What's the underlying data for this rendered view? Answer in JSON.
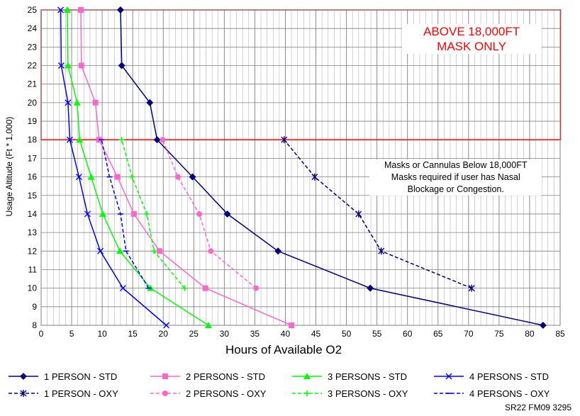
{
  "chart_data": {
    "type": "line",
    "xlabel": "Hours of Available O2",
    "ylabel": "Usage Altitude (Ft * 1,000)",
    "xlim": [
      0,
      85
    ],
    "ylim": [
      8,
      25
    ],
    "xticks": [
      0,
      5,
      10,
      15,
      20,
      25,
      30,
      35,
      40,
      45,
      50,
      55,
      60,
      65,
      70,
      75,
      80,
      85
    ],
    "yticks": [
      8,
      9,
      10,
      11,
      12,
      13,
      14,
      15,
      16,
      17,
      18,
      19,
      20,
      21,
      22,
      23,
      24,
      25
    ],
    "grid": true,
    "legend_position": "bottom",
    "warning_threshold": 18,
    "annotations": {
      "above": "ABOVE 18,000FT\nMASK ONLY",
      "below": "Masks or Cannulas Below 18,000FT\nMasks required if user has Nasal\nBlockage or Congestion."
    },
    "series": [
      {
        "name": "1 PERSON - STD",
        "color": "#000080",
        "dash": "solid",
        "marker": "diamond",
        "points": [
          [
            82.2,
            8
          ],
          [
            53.9,
            10
          ],
          [
            38.8,
            12
          ],
          [
            30.5,
            14
          ],
          [
            24.8,
            16
          ],
          [
            19.0,
            18
          ],
          [
            17.8,
            20
          ],
          [
            13.2,
            22
          ],
          [
            13.0,
            25
          ]
        ]
      },
      {
        "name": "2 PERSONS - STD",
        "color": "#ff66cc",
        "dash": "solid",
        "marker": "square",
        "points": [
          [
            41.0,
            8
          ],
          [
            26.9,
            10
          ],
          [
            19.4,
            12
          ],
          [
            15.2,
            14
          ],
          [
            12.5,
            16
          ],
          [
            9.5,
            18
          ],
          [
            8.9,
            20
          ],
          [
            6.6,
            22
          ],
          [
            6.5,
            25
          ]
        ]
      },
      {
        "name": "3 PERSONS - STD",
        "color": "#00ff00",
        "dash": "solid",
        "marker": "triangle",
        "points": [
          [
            27.4,
            8
          ],
          [
            17.9,
            10
          ],
          [
            12.9,
            12
          ],
          [
            10.1,
            14
          ],
          [
            8.2,
            16
          ],
          [
            6.3,
            18
          ],
          [
            5.9,
            20
          ],
          [
            4.4,
            22
          ],
          [
            4.3,
            25
          ]
        ]
      },
      {
        "name": "4 PERSONS - STD",
        "color": "#0000ff",
        "dash": "solid",
        "marker": "x",
        "points": [
          [
            20.5,
            8
          ],
          [
            13.4,
            10
          ],
          [
            9.7,
            12
          ],
          [
            7.6,
            14
          ],
          [
            6.2,
            16
          ],
          [
            4.7,
            18
          ],
          [
            4.4,
            20
          ],
          [
            3.3,
            22
          ],
          [
            3.2,
            25
          ]
        ]
      },
      {
        "name": "1 PERSON - OXY",
        "color": "#000080",
        "dash": "dashed",
        "marker": "star",
        "points": [
          [
            70.5,
            10
          ],
          [
            55.7,
            12
          ],
          [
            52.0,
            14
          ],
          [
            44.8,
            16
          ],
          [
            39.8,
            18
          ]
        ]
      },
      {
        "name": "2 PERSONS - OXY",
        "color": "#ff66cc",
        "dash": "dashed",
        "marker": "circle",
        "points": [
          [
            35.2,
            10
          ],
          [
            27.8,
            12
          ],
          [
            25.9,
            14
          ],
          [
            22.4,
            16
          ],
          [
            19.9,
            18
          ]
        ]
      },
      {
        "name": "3 PERSONS - OXY",
        "color": "#00ff00",
        "dash": "dashed",
        "marker": "plus",
        "points": [
          [
            23.5,
            10
          ],
          [
            18.5,
            12
          ],
          [
            17.3,
            14
          ],
          [
            14.9,
            16
          ],
          [
            13.2,
            18
          ]
        ]
      },
      {
        "name": "4 PERSONS - OXY",
        "color": "#0000ff",
        "dash": "dashed",
        "marker": "dash",
        "points": [
          [
            17.6,
            10
          ],
          [
            13.9,
            12
          ],
          [
            13.0,
            14
          ],
          [
            11.2,
            16
          ],
          [
            9.9,
            18
          ]
        ]
      }
    ]
  },
  "footer_code": "SR22  FM09  3295"
}
